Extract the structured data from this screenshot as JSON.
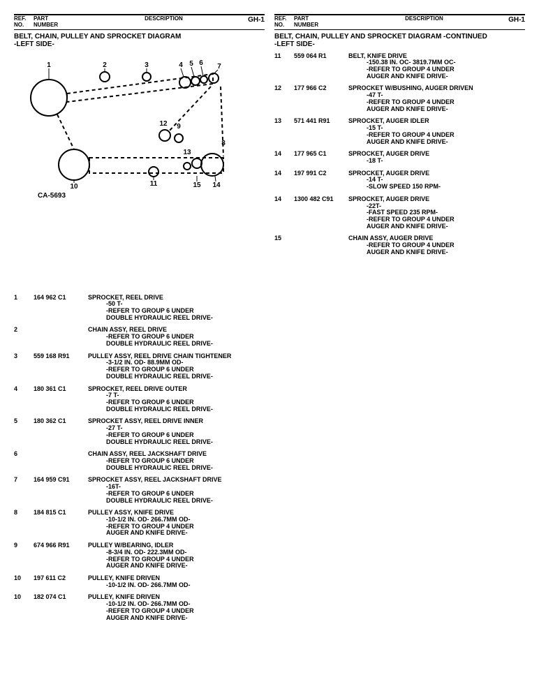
{
  "header": {
    "ref_label_1": "REF.",
    "ref_label_2": "NO.",
    "part_label_1": "PART",
    "part_label_2": "NUMBER",
    "desc_label": "DESCRIPTION",
    "page_code": "GH-1"
  },
  "left": {
    "title_line1": "BELT, CHAIN, PULLEY AND SPROCKET DIAGRAM",
    "title_line2": "-LEFT SIDE-",
    "diagram_id": "CA-5693",
    "diagram_callouts": [
      "1",
      "2",
      "3",
      "4",
      "5",
      "6",
      "7",
      "8",
      "9",
      "10",
      "11",
      "12",
      "13",
      "14",
      "15"
    ],
    "rows": [
      {
        "ref": "1",
        "part": "164 962 C1",
        "d": [
          "SPROCKET, REEL DRIVE",
          "-50 T-",
          "-REFER TO GROUP 6 UNDER",
          "DOUBLE HYDRAULIC REEL DRIVE-"
        ]
      },
      {
        "ref": "2",
        "part": "",
        "d": [
          "CHAIN ASSY, REEL DRIVE",
          "-REFER TO GROUP 6 UNDER",
          "DOUBLE HYDRAULIC REEL DRIVE-"
        ]
      },
      {
        "ref": "3",
        "part": "559 168 R91",
        "d": [
          "PULLEY ASSY, REEL DRIVE CHAIN TIGHTENER",
          "-3-1/2 IN. OD- 88.9MM OD-",
          "-REFER TO GROUP 6 UNDER",
          "DOUBLE HYDRAULIC REEL DRIVE-"
        ]
      },
      {
        "ref": "4",
        "part": "180 361 C1",
        "d": [
          "SPROCKET, REEL DRIVE OUTER",
          "-7 T-",
          "-REFER TO GROUP 6 UNDER",
          "DOUBLE HYDRAULIC REEL DRIVE-"
        ]
      },
      {
        "ref": "5",
        "part": "180 362 C1",
        "d": [
          "SPROCKET ASSY, REEL DRIVE INNER",
          "-27 T-",
          "-REFER TO GROUP 6 UNDER",
          "DOUBLE HYDRAULIC REEL DRIVE-"
        ]
      },
      {
        "ref": "6",
        "part": "",
        "d": [
          "CHAIN ASSY, REEL JACKSHAFT DRIVE",
          "-REFER TO GROUP 6 UNDER",
          "DOUBLE HYDRAULIC REEL DRIVE-"
        ]
      },
      {
        "ref": "7",
        "part": "164 959 C91",
        "d": [
          "SPROCKET ASSY, REEL JACKSHAFT DRIVE",
          "-16T-",
          "-REFER TO GROUP 6 UNDER",
          "DOUBLE HYDRAULIC REEL DRIVE-"
        ]
      },
      {
        "ref": "8",
        "part": "184 815 C1",
        "d": [
          "PULLEY ASSY, KNIFE DRIVE",
          "-10-1/2 IN. OD- 266.7MM OD-",
          "-REFER TO GROUP 4 UNDER",
          "AUGER AND KNIFE DRIVE-"
        ]
      },
      {
        "ref": "9",
        "part": "674 966 R91",
        "d": [
          "PULLEY W/BEARING, IDLER",
          "-8-3/4 IN. OD- 222.3MM OD-",
          "-REFER TO GROUP 4 UNDER",
          "AUGER AND KNIFE DRIVE-"
        ]
      },
      {
        "ref": "10",
        "part": "197 611 C2",
        "d": [
          "PULLEY, KNIFE DRIVEN",
          "-10-1/2 IN. OD- 266.7MM OD-"
        ]
      },
      {
        "ref": "10",
        "part": "182 074 C1",
        "d": [
          "PULLEY, KNIFE DRIVEN",
          "-10-1/2 IN. OD- 266.7MM OD-",
          "-REFER TO GROUP 4 UNDER",
          "AUGER AND KNIFE DRIVE-"
        ]
      }
    ]
  },
  "right": {
    "title_line1": "BELT, CHAIN, PULLEY AND SPROCKET DIAGRAM  -CONTINUED",
    "title_line2": "-LEFT SIDE-",
    "rows": [
      {
        "ref": "11",
        "part": "559 064 R1",
        "d": [
          "BELT, KNIFE DRIVE",
          "-150.38 IN. OC- 3819.7MM OC-",
          "-REFER TO GROUP 4 UNDER",
          "AUGER AND KNIFE DRIVE-"
        ]
      },
      {
        "ref": "12",
        "part": "177 966 C2",
        "d": [
          "SPROCKET W/BUSHING, AUGER DRIVEN",
          "-47 T-",
          "-REFER TO GROUP 4 UNDER",
          "AUGER AND KNIFE DRIVE-"
        ]
      },
      {
        "ref": "13",
        "part": "571 441 R91",
        "d": [
          "SPROCKET, AUGER IDLER",
          "-15 T-",
          "-REFER TO GROUP 4 UNDER",
          "AUGER AND KNIFE DRIVE-"
        ]
      },
      {
        "ref": "14",
        "part": "177 965 C1",
        "d": [
          "SPROCKET, AUGER DRIVE",
          "-18 T-"
        ]
      },
      {
        "ref": "14",
        "part": "197 991 C2",
        "d": [
          "SPROCKET, AUGER DRIVE",
          "-14 T-",
          "-SLOW SPEED 150 RPM-"
        ]
      },
      {
        "ref": "14",
        "part": "1300 482 C91",
        "d": [
          "SPROCKET, AUGER DRIVE",
          "-22T-",
          "-FAST SPEED 235 RPM-",
          "-REFER TO GROUP 4 UNDER",
          "AUGER AND KNIFE DRIVE-"
        ]
      },
      {
        "ref": "15",
        "part": "",
        "d": [
          "CHAIN ASSY, AUGER DRIVE",
          "-REFER TO GROUP 4 UNDER",
          "AUGER AND KNIFE DRIVE-"
        ]
      }
    ]
  }
}
